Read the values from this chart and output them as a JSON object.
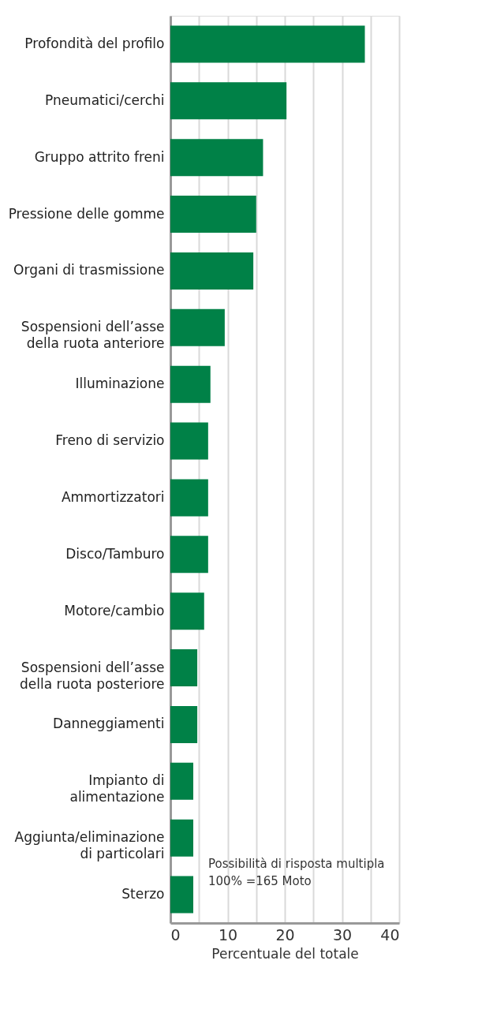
{
  "chart_data": {
    "type": "bar",
    "orientation": "horizontal",
    "xlabel": "Percentuale del totale",
    "categories": [
      "Profondità del profilo",
      "Pneumatici/cerchi",
      "Gruppo attrito freni",
      "Pressione delle gomme",
      "Organi di trasmissione",
      "Sospensioni dell’asse\ndella ruota anteriore",
      "Illuminazione",
      "Freno di servizio",
      "Ammortizzatori",
      "Disco/Tamburo",
      "Motore/cambio",
      "Sospensioni dell’asse\ndella ruota posteriore",
      "Danneggiamenti",
      "Impianto di\nalimentazione",
      "Aggiunta/eliminazione\ndi particolari",
      "Sterzo"
    ],
    "values": [
      34.0,
      20.3,
      16.2,
      15.0,
      14.5,
      9.5,
      7.0,
      6.6,
      6.6,
      6.6,
      5.9,
      4.7,
      4.7,
      4.0,
      4.0,
      4.0
    ],
    "color": "#008147",
    "xlim": [
      0,
      40
    ],
    "xticks": [
      0,
      {
        "value": 5,
        "label": null
      },
      10,
      {
        "value": 15,
        "label": null
      },
      20,
      {
        "value": 25,
        "label": null
      },
      30,
      {
        "value": 35,
        "label": null
      },
      40
    ],
    "grid": true,
    "annotations": [
      "Possibilità di risposta multipla\n100% =165 Moto"
    ]
  }
}
